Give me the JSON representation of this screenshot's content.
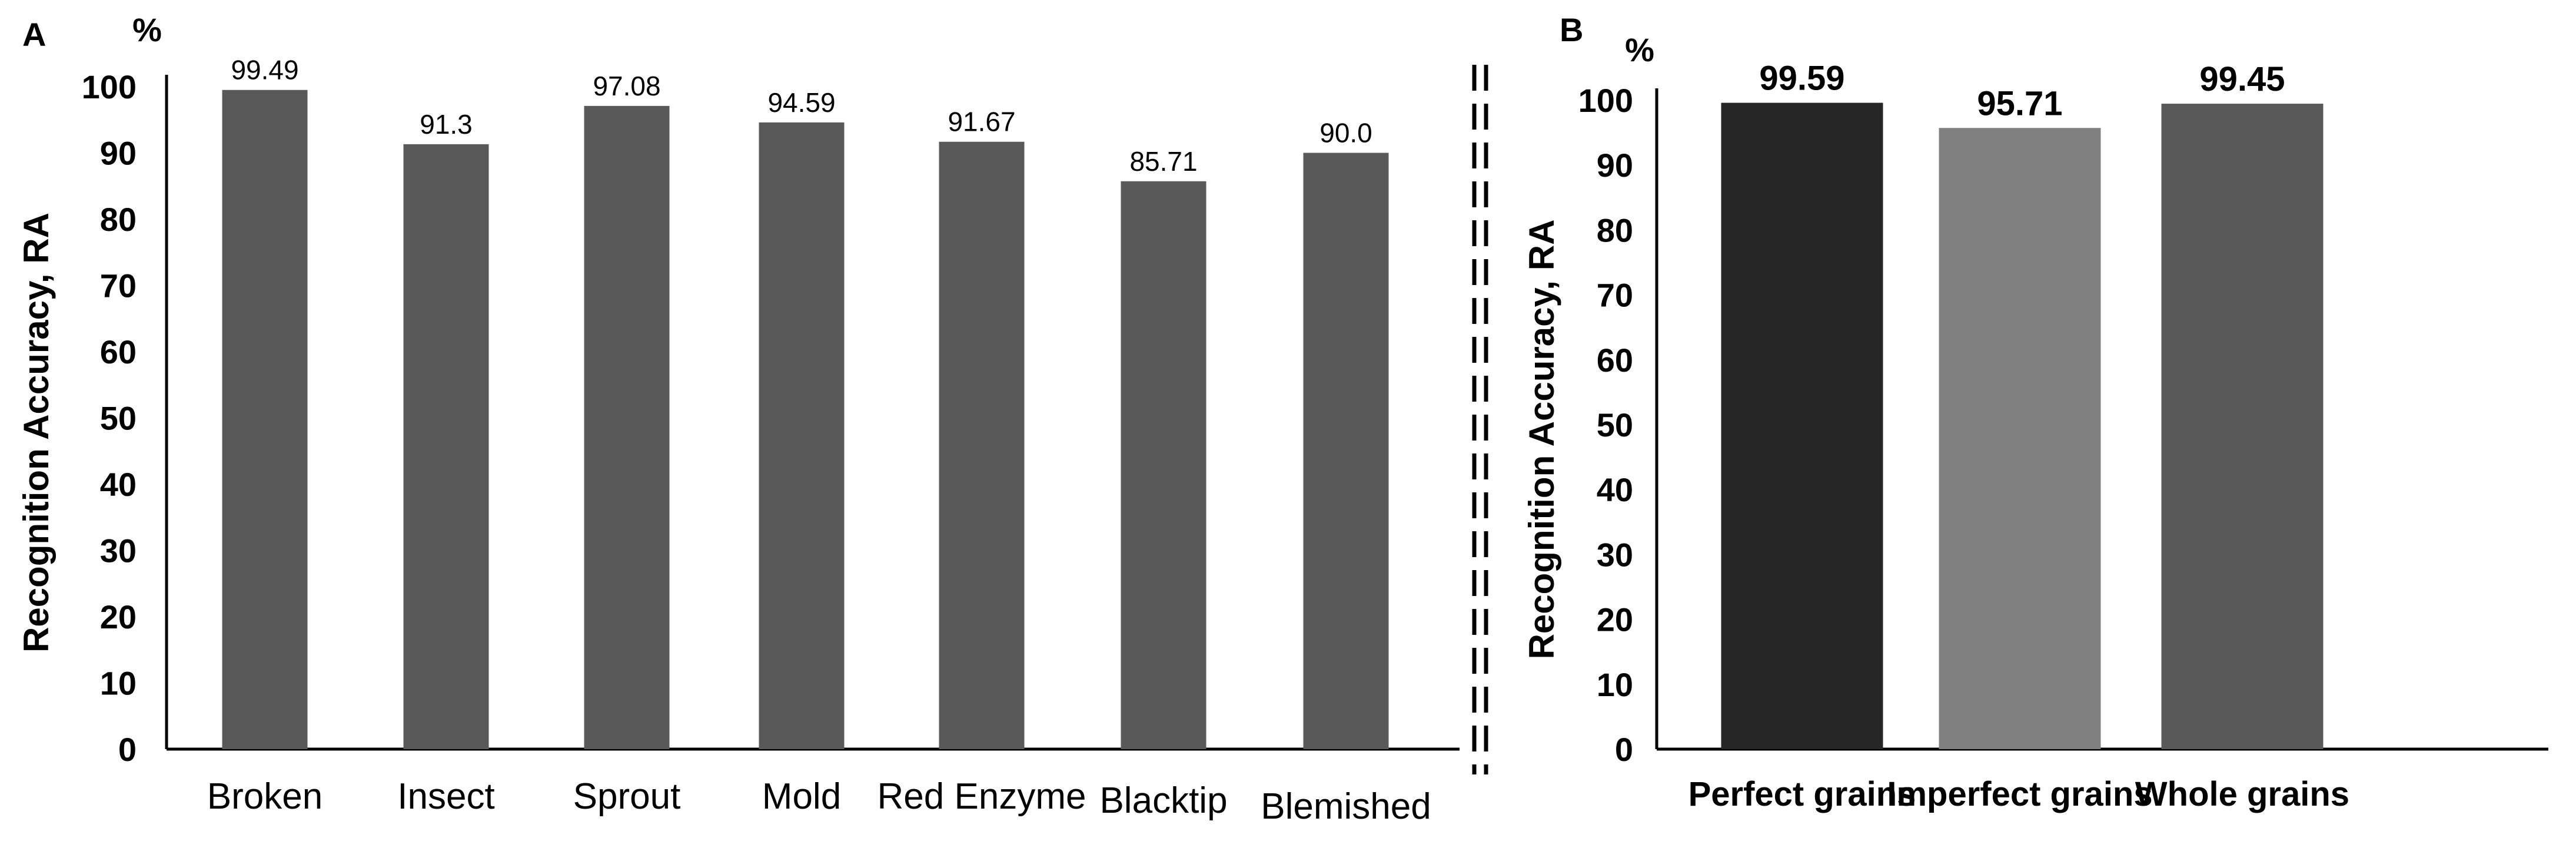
{
  "chart_data": [
    {
      "type": "bar",
      "panel": "A",
      "unit": "%",
      "ylabel": "Recognition Accuracy, RA",
      "yticks": [
        "0",
        "10",
        "20",
        "30",
        "40",
        "50",
        "60",
        "70",
        "80",
        "90",
        "100"
      ],
      "ylim": [
        0,
        100
      ],
      "categories": [
        "Broken",
        "Insect",
        "Sprout",
        "Mold",
        "Red Enzyme",
        "Blacktip",
        "Blemished"
      ],
      "values": [
        99.49,
        91.3,
        97.08,
        94.59,
        91.67,
        85.71,
        90.0
      ],
      "value_labels": [
        "99.49",
        "91.3",
        "97.08",
        "94.59",
        "91.67",
        "85.71",
        "90.0"
      ],
      "bar_colors": [
        "#595959",
        "#595959",
        "#595959",
        "#595959",
        "#595959",
        "#595959",
        "#595959"
      ],
      "grid": false,
      "legend": "none"
    },
    {
      "type": "bar",
      "panel": "B",
      "unit": "%",
      "ylabel": "Recognition Accuracy, RA",
      "yticks": [
        "0",
        "10",
        "20",
        "30",
        "40",
        "50",
        "60",
        "70",
        "80",
        "90",
        "100"
      ],
      "ylim": [
        0,
        100
      ],
      "categories": [
        "Perfect grains",
        "Imperfect grains",
        "Whole grains"
      ],
      "values": [
        99.59,
        95.71,
        99.45
      ],
      "value_labels": [
        "99.59",
        "95.71",
        "99.45"
      ],
      "bar_colors": [
        "#262626",
        "#808080",
        "#595959"
      ],
      "grid": false,
      "legend": "none"
    }
  ],
  "separator": {
    "style": "double-dashed-vertical",
    "color": "#000000"
  }
}
